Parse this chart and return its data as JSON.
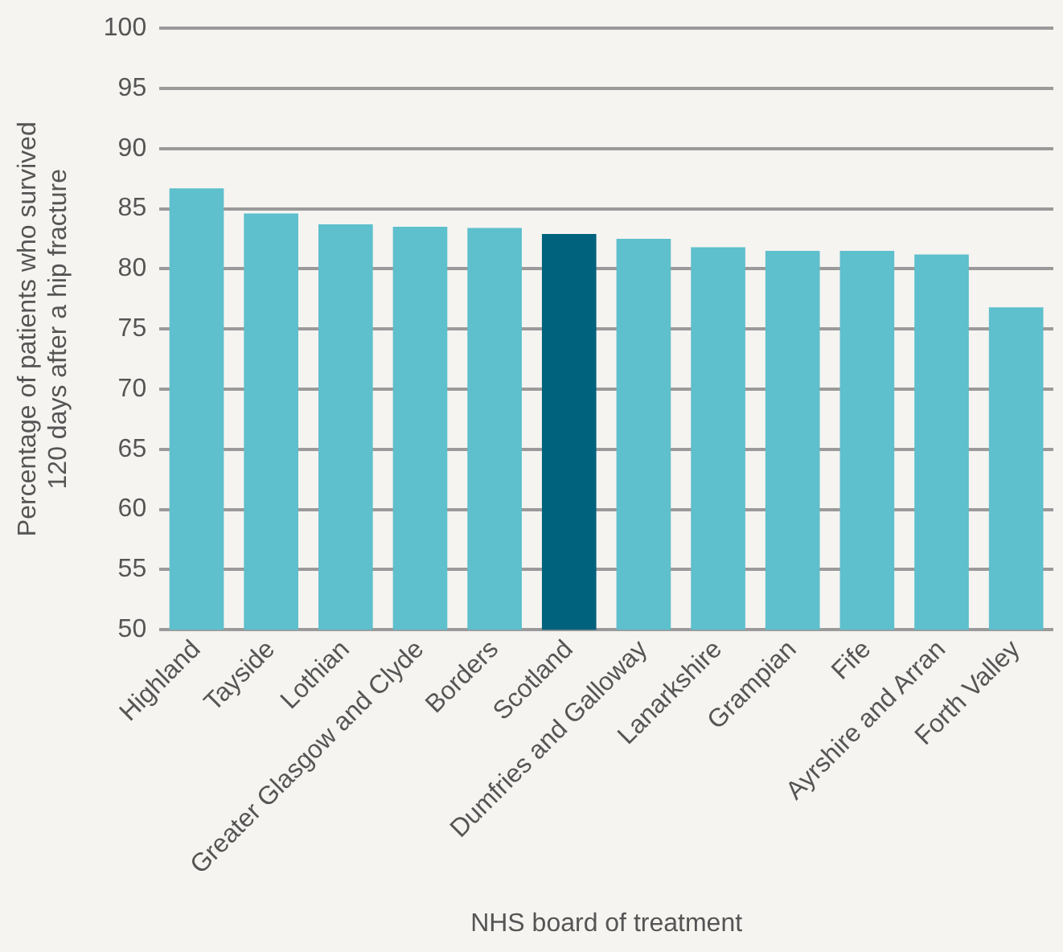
{
  "chart_data": {
    "type": "bar",
    "xlabel": "NHS board of treatment",
    "ylabel": "Percentage of patients who survived\n120 days after a hip fracture",
    "categories": [
      "Highland",
      "Tayside",
      "Lothian",
      "Greater Glasgow and Clyde",
      "Borders",
      "Scotland",
      "Dumfries and Galloway",
      "Lanarkshire",
      "Grampian",
      "Fife",
      "Ayrshire and Arran",
      "Forth Valley"
    ],
    "values": [
      86.7,
      84.6,
      83.7,
      83.5,
      83.4,
      82.9,
      82.5,
      81.8,
      81.5,
      81.5,
      81.2,
      76.8
    ],
    "colors": [
      "#5ebfcd",
      "#5ebfcd",
      "#5ebfcd",
      "#5ebfcd",
      "#5ebfcd",
      "#00627d",
      "#5ebfcd",
      "#5ebfcd",
      "#5ebfcd",
      "#5ebfcd",
      "#5ebfcd",
      "#5ebfcd"
    ],
    "ylim": [
      50,
      100
    ],
    "yticks": [
      50,
      55,
      60,
      65,
      70,
      75,
      80,
      85,
      90,
      95,
      100
    ],
    "grid": "y",
    "legend": false
  }
}
